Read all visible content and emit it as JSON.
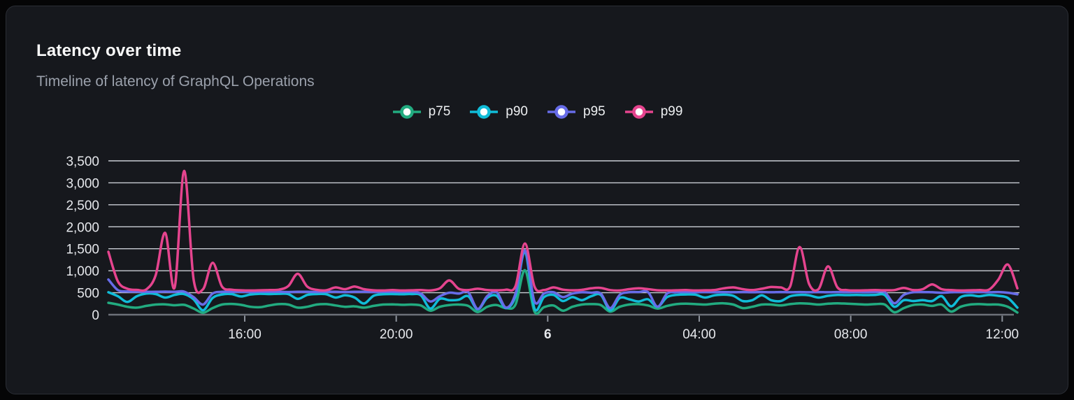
{
  "panel": {
    "title": "Latency over time",
    "subtitle": "Timeline of latency of GraphQL Operations"
  },
  "colors": {
    "background": "#050506",
    "panel_bg": "#16181d",
    "panel_border": "#2b2e35",
    "grid_line": "#c9cdd4",
    "axis_line": "#6d7179",
    "tick_mark": "#8b909a",
    "tick_label": "#e6e8ec",
    "title": "#fafafa",
    "subtitle": "#9ba1ac"
  },
  "chart_data": {
    "type": "line",
    "title": "Latency over time",
    "subtitle": "Timeline of latency of GraphQL Operations",
    "grid": "horizontal",
    "legend_position": "top",
    "x_unit": "hours from left edge of plot (approx 12:25 to 12:25 next day, day boundary labeled 6)",
    "xlim": [
      0,
      24
    ],
    "ylim": [
      0,
      3500
    ],
    "y_ticks": [
      0,
      500,
      1000,
      1500,
      2000,
      2500,
      3000,
      3500
    ],
    "y_tick_labels": [
      "0",
      "500",
      "1,000",
      "1,500",
      "2,000",
      "2,500",
      "3,000",
      "3,500"
    ],
    "x_ticks": [
      {
        "t": 3.6,
        "label": "16:00",
        "bold": false
      },
      {
        "t": 7.6,
        "label": "20:00",
        "bold": false
      },
      {
        "t": 11.6,
        "label": "6",
        "bold": true
      },
      {
        "t": 15.6,
        "label": "04:00",
        "bold": false
      },
      {
        "t": 19.6,
        "label": "08:00",
        "bold": false
      },
      {
        "t": 23.6,
        "label": "12:00",
        "bold": false
      }
    ],
    "x": [
      0,
      0.25,
      0.5,
      0.75,
      1,
      1.25,
      1.5,
      1.75,
      2,
      2.25,
      2.5,
      2.75,
      3,
      3.25,
      3.5,
      3.75,
      4,
      4.25,
      4.5,
      4.75,
      5,
      5.25,
      5.5,
      5.75,
      6,
      6.25,
      6.5,
      6.75,
      7,
      7.25,
      7.5,
      7.75,
      8,
      8.25,
      8.5,
      8.75,
      9,
      9.25,
      9.5,
      9.75,
      10,
      10.25,
      10.5,
      10.75,
      11,
      11.25,
      11.5,
      11.75,
      12,
      12.25,
      12.5,
      12.75,
      13,
      13.25,
      13.5,
      13.75,
      14,
      14.25,
      14.5,
      14.75,
      15,
      15.25,
      15.5,
      15.75,
      16,
      16.25,
      16.5,
      16.75,
      17,
      17.25,
      17.5,
      17.75,
      18,
      18.25,
      18.5,
      18.75,
      19,
      19.25,
      19.5,
      19.75,
      20,
      20.25,
      20.5,
      20.75,
      21,
      21.25,
      21.5,
      21.75,
      22,
      22.25,
      22.5,
      22.75,
      23,
      23.25,
      23.5,
      23.75,
      24
    ],
    "series": [
      {
        "name": "p75",
        "color": "#22ab80",
        "values": [
          270,
          230,
          180,
          160,
          200,
          230,
          235,
          215,
          225,
          140,
          45,
          150,
          230,
          245,
          225,
          180,
          170,
          210,
          240,
          230,
          160,
          180,
          230,
          240,
          210,
          180,
          190,
          160,
          200,
          230,
          235,
          225,
          230,
          210,
          90,
          180,
          220,
          230,
          200,
          60,
          180,
          220,
          150,
          230,
          1010,
          70,
          170,
          210,
          90,
          180,
          230,
          240,
          220,
          70,
          180,
          230,
          240,
          210,
          140,
          200,
          240,
          250,
          240,
          230,
          250,
          260,
          230,
          150,
          180,
          230,
          230,
          210,
          240,
          260,
          250,
          230,
          250,
          260,
          250,
          240,
          230,
          240,
          230,
          55,
          150,
          220,
          230,
          200,
          230,
          70,
          180,
          230,
          240,
          230,
          230,
          180,
          50
        ]
      },
      {
        "name": "p90",
        "color": "#10bcd8",
        "values": [
          510,
          420,
          290,
          420,
          480,
          470,
          390,
          450,
          470,
          350,
          100,
          380,
          460,
          470,
          415,
          460,
          475,
          470,
          475,
          470,
          360,
          450,
          470,
          465,
          390,
          440,
          390,
          255,
          430,
          465,
          470,
          465,
          470,
          440,
          140,
          360,
          330,
          340,
          420,
          120,
          380,
          430,
          150,
          420,
          1430,
          140,
          400,
          450,
          310,
          400,
          330,
          420,
          450,
          100,
          380,
          350,
          300,
          350,
          180,
          400,
          450,
          460,
          455,
          390,
          440,
          455,
          430,
          310,
          330,
          440,
          330,
          310,
          420,
          450,
          440,
          390,
          430,
          450,
          445,
          450,
          445,
          450,
          445,
          180,
          330,
          310,
          330,
          310,
          420,
          190,
          400,
          440,
          420,
          450,
          430,
          380,
          160
        ]
      },
      {
        "name": "p95",
        "color": "#676ce8",
        "values": [
          800,
          560,
          530,
          525,
          520,
          520,
          525,
          520,
          525,
          400,
          230,
          480,
          520,
          520,
          520,
          515,
          520,
          520,
          520,
          515,
          520,
          520,
          515,
          520,
          520,
          515,
          520,
          520,
          515,
          520,
          520,
          515,
          520,
          480,
          300,
          420,
          500,
          480,
          510,
          130,
          420,
          510,
          160,
          480,
          1460,
          300,
          480,
          510,
          400,
          480,
          510,
          500,
          480,
          150,
          450,
          510,
          515,
          510,
          180,
          480,
          510,
          515,
          510,
          515,
          510,
          515,
          510,
          515,
          510,
          515,
          510,
          515,
          510,
          515,
          510,
          515,
          510,
          515,
          510,
          515,
          510,
          515,
          510,
          260,
          450,
          510,
          515,
          510,
          500,
          510,
          515,
          510,
          515,
          510,
          515,
          500,
          465
        ]
      },
      {
        "name": "p99",
        "color": "#e5448e",
        "values": [
          1430,
          760,
          590,
          565,
          575,
          900,
          1860,
          620,
          3270,
          800,
          580,
          1180,
          640,
          570,
          555,
          550,
          555,
          560,
          570,
          650,
          930,
          640,
          565,
          555,
          620,
          580,
          640,
          580,
          555,
          550,
          560,
          550,
          555,
          560,
          550,
          600,
          780,
          590,
          560,
          590,
          560,
          555,
          570,
          650,
          1620,
          640,
          560,
          620,
          570,
          555,
          565,
          600,
          610,
          560,
          550,
          580,
          600,
          580,
          555,
          550,
          555,
          560,
          550,
          555,
          560,
          600,
          620,
          580,
          560,
          590,
          630,
          620,
          640,
          1540,
          700,
          580,
          1100,
          620,
          560,
          550,
          555,
          560,
          555,
          560,
          610,
          560,
          580,
          690,
          580,
          560,
          550,
          555,
          560,
          570,
          800,
          1140,
          600
        ]
      }
    ]
  }
}
